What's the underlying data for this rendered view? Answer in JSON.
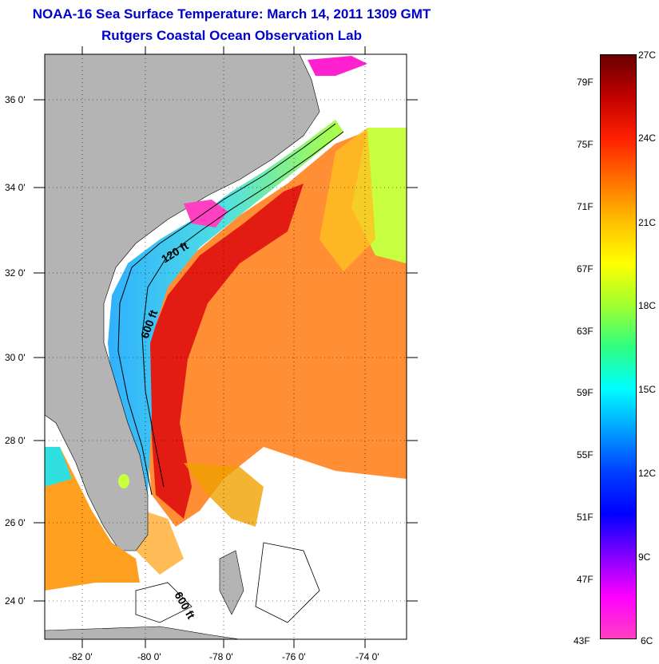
{
  "title": {
    "line1": "NOAA-16 Sea Surface Temperature:  March 14, 2011 1309 GMT",
    "line2": "Rutgers Coastal Ocean Observation Lab"
  },
  "map": {
    "lat_labels": [
      "36 0'",
      "34 0'",
      "32 0'",
      "30 0'",
      "28 0'",
      "26 0'",
      "24 0'"
    ],
    "lon_labels": [
      "-82 0'",
      "-80 0'",
      "-78 0'",
      "-76 0'",
      "-74 0'"
    ],
    "contour_labels": [
      "120 ft",
      "600 ft",
      "600 ft"
    ],
    "land_color": "#b4b4b4"
  },
  "colorbar": {
    "fahrenheit": [
      "79F",
      "75F",
      "71F",
      "67F",
      "63F",
      "59F",
      "55F",
      "51F",
      "47F",
      "43F"
    ],
    "celsius": [
      "27C",
      "24C",
      "21C",
      "18C",
      "15C",
      "12C",
      "9C",
      "6C"
    ],
    "colors": [
      "#6a0000",
      "#c00000",
      "#ff2000",
      "#ff7000",
      "#ffc000",
      "#ffff00",
      "#a0ff30",
      "#30ff80",
      "#00ffff",
      "#00a0ff",
      "#0040ff",
      "#0000ff",
      "#8000ff",
      "#ff00ff",
      "#ff40c0"
    ]
  }
}
